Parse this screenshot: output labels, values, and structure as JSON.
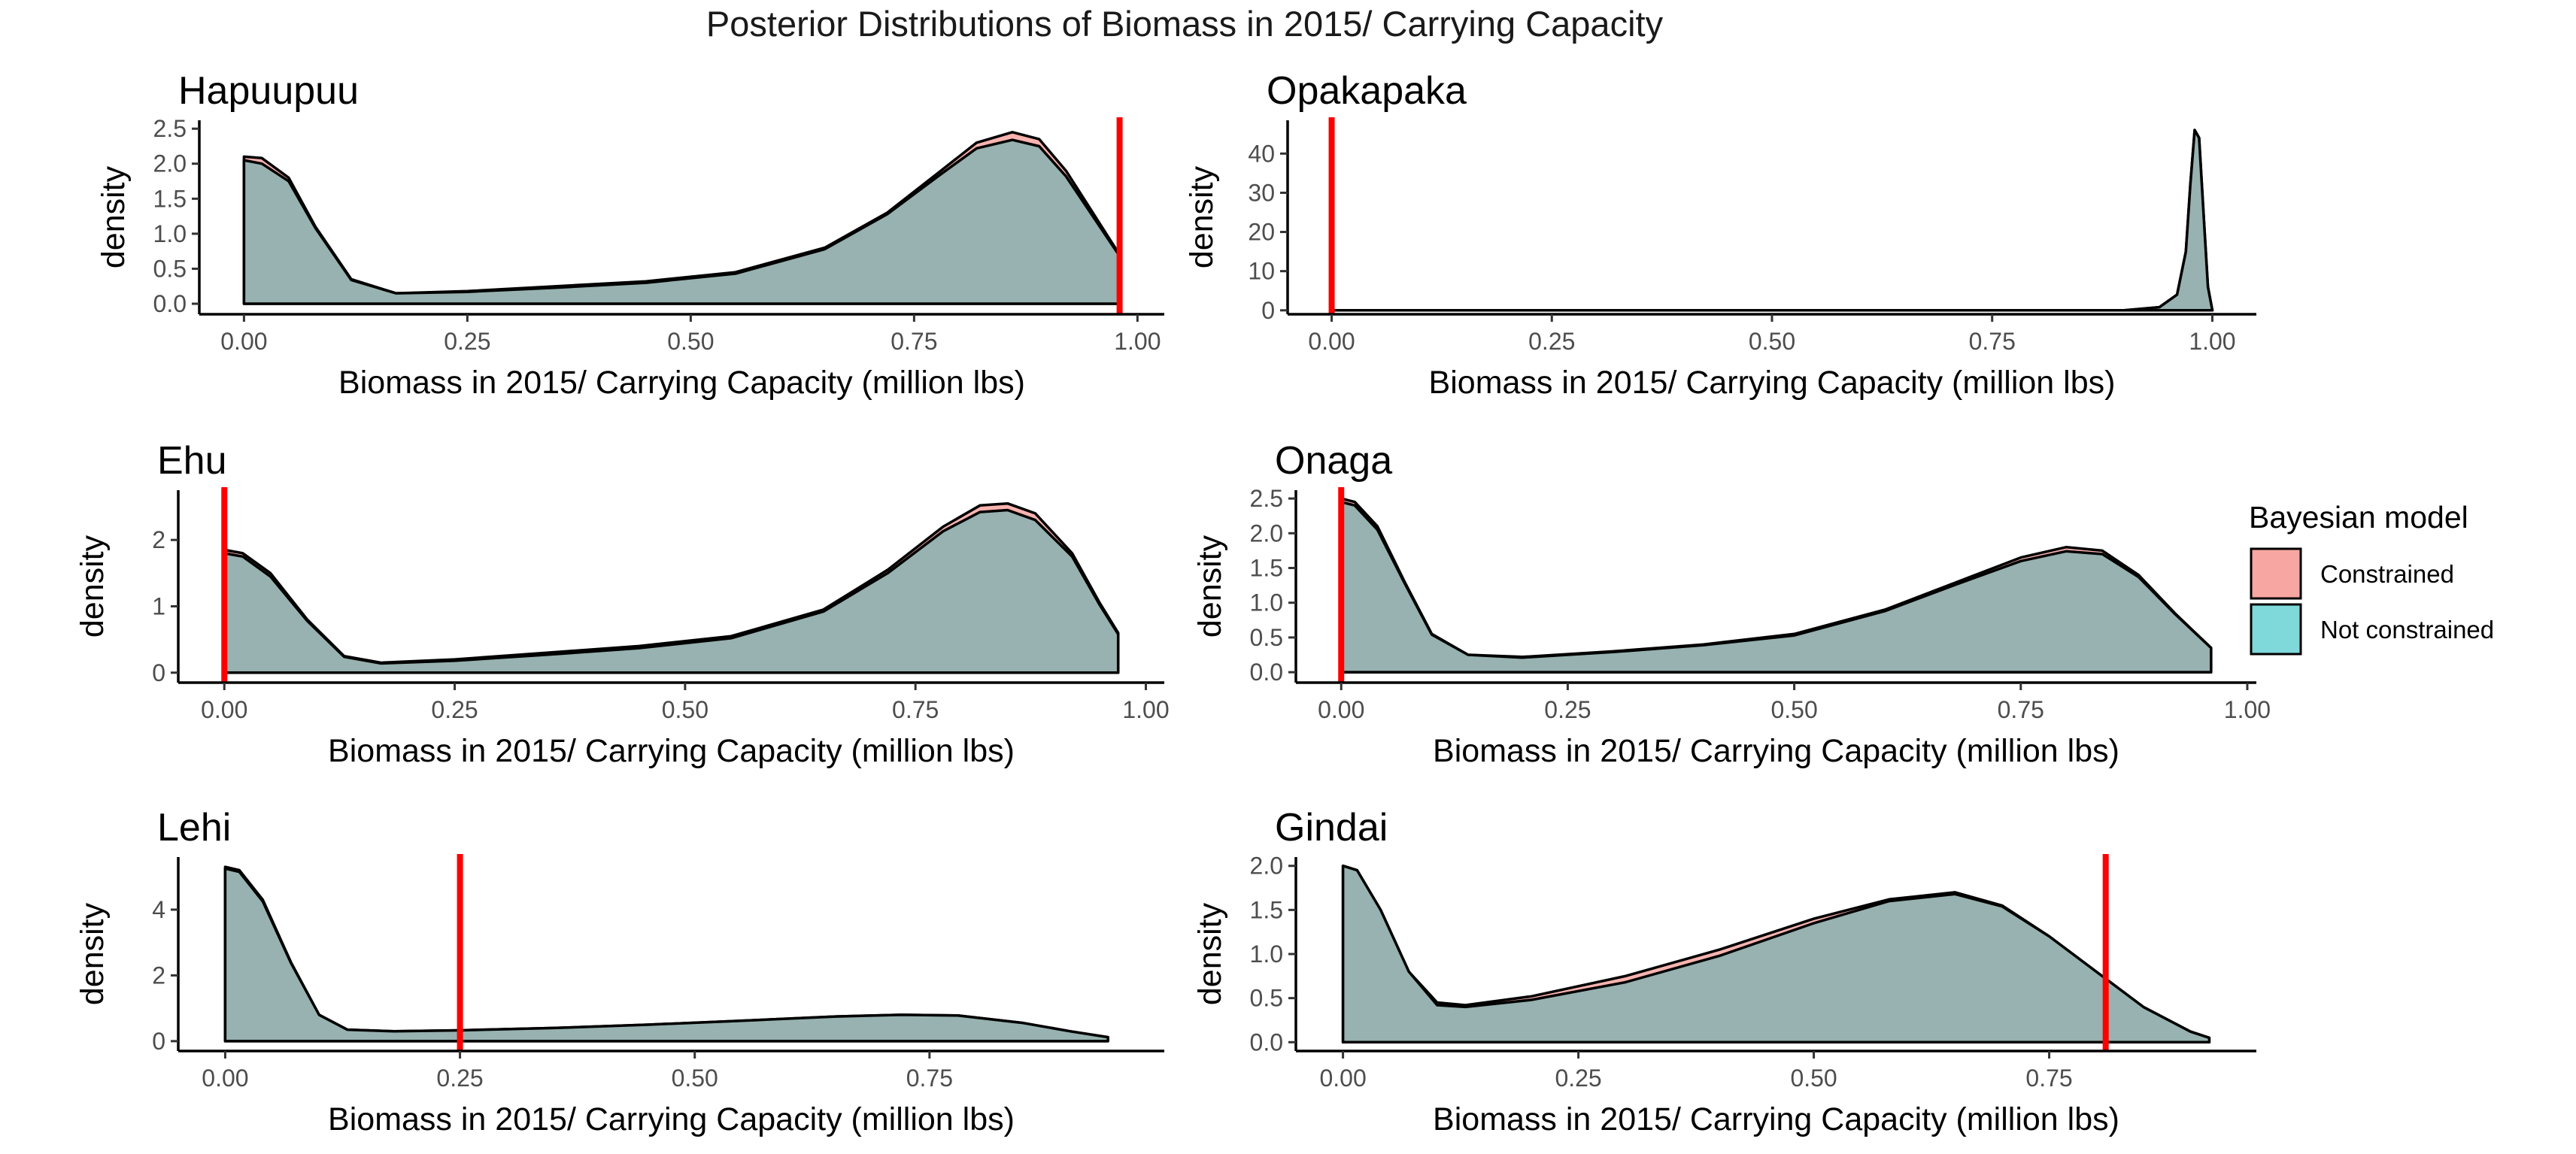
{
  "title": "Posterior Distributions of Biomass in 2015/ Carrying Capacity",
  "legend": {
    "title": "Bayesian model",
    "items": [
      {
        "label": "Constrained",
        "color": "#F8A6A1"
      },
      {
        "label": "Not constrained",
        "color": "#7FD8DA"
      }
    ]
  },
  "colors": {
    "overlap_fill": "#89B2B1",
    "reference_line": "#FF0000",
    "outline": "#000000"
  },
  "chart_data": [
    {
      "type": "area",
      "panel": "Hapuupuu",
      "xlabel": "Biomass in 2015/ Carrying Capacity (million lbs)",
      "ylabel": "density",
      "xlim": [
        -0.05,
        1.03
      ],
      "ylim": [
        -0.15,
        2.62
      ],
      "xticks": [
        {
          "v": 0,
          "label": "0.00"
        },
        {
          "v": 0.25,
          "label": "0.25"
        },
        {
          "v": 0.5,
          "label": "0.50"
        },
        {
          "v": 0.75,
          "label": "0.75"
        },
        {
          "v": 1.0,
          "label": "1.00"
        }
      ],
      "yticks": [
        {
          "v": 0,
          "label": "0.0"
        },
        {
          "v": 0.5,
          "label": "0.5"
        },
        {
          "v": 1.0,
          "label": "1.0"
        },
        {
          "v": 1.5,
          "label": "1.5"
        },
        {
          "v": 2.0,
          "label": "2.0"
        },
        {
          "v": 2.5,
          "label": "2.5"
        }
      ],
      "reference_x": 0.98,
      "series": [
        {
          "name": "Constrained",
          "x": [
            0,
            0.02,
            0.05,
            0.08,
            0.12,
            0.17,
            0.25,
            0.35,
            0.45,
            0.55,
            0.65,
            0.72,
            0.78,
            0.82,
            0.86,
            0.89,
            0.92,
            0.95,
            0.98
          ],
          "y": [
            2.1,
            2.08,
            1.8,
            1.1,
            0.35,
            0.15,
            0.18,
            0.25,
            0.32,
            0.45,
            0.8,
            1.3,
            1.9,
            2.3,
            2.45,
            2.35,
            1.9,
            1.3,
            0.7
          ]
        },
        {
          "name": "Not constrained",
          "x": [
            0,
            0.02,
            0.05,
            0.08,
            0.12,
            0.17,
            0.25,
            0.35,
            0.45,
            0.55,
            0.65,
            0.72,
            0.78,
            0.82,
            0.86,
            0.89,
            0.92,
            0.95,
            0.98
          ],
          "y": [
            2.05,
            2.0,
            1.75,
            1.08,
            0.34,
            0.15,
            0.17,
            0.23,
            0.3,
            0.43,
            0.78,
            1.28,
            1.85,
            2.22,
            2.34,
            2.25,
            1.82,
            1.25,
            0.68
          ]
        }
      ]
    },
    {
      "type": "area",
      "panel": "Opakapaka",
      "xlabel": "Biomass in 2015/ Carrying Capacity (million lbs)",
      "ylabel": "density",
      "xlim": [
        -0.05,
        1.05
      ],
      "ylim": [
        -1,
        48.5
      ],
      "xticks": [
        {
          "v": 0,
          "label": "0.00"
        },
        {
          "v": 0.25,
          "label": "0.25"
        },
        {
          "v": 0.5,
          "label": "0.50"
        },
        {
          "v": 0.75,
          "label": "0.75"
        },
        {
          "v": 1.0,
          "label": "1.00"
        }
      ],
      "yticks": [
        {
          "v": 0,
          "label": "0"
        },
        {
          "v": 10,
          "label": "10"
        },
        {
          "v": 20,
          "label": "20"
        },
        {
          "v": 30,
          "label": "30"
        },
        {
          "v": 40,
          "label": "40"
        }
      ],
      "reference_x": 0.0,
      "series": [
        {
          "name": "Constrained",
          "x": [
            0,
            0.5,
            0.9,
            0.94,
            0.96,
            0.97,
            0.975,
            0.98,
            0.985,
            0.99,
            0.995,
            1.0
          ],
          "y": [
            0,
            0,
            0.02,
            0.8,
            4,
            15,
            32,
            46,
            44,
            25,
            6,
            0
          ]
        },
        {
          "name": "Not constrained",
          "x": [
            0,
            0.5,
            0.9,
            0.94,
            0.96,
            0.97,
            0.975,
            0.98,
            0.985,
            0.99,
            0.995,
            1.0
          ],
          "y": [
            0,
            0,
            0.02,
            0.8,
            4,
            15,
            32,
            46,
            44,
            25,
            6,
            0
          ]
        }
      ]
    },
    {
      "type": "area",
      "panel": "Ehu",
      "xlabel": "Biomass in 2015/ Carrying Capacity (million lbs)",
      "ylabel": "density",
      "xlim": [
        -0.05,
        1.02
      ],
      "ylim": [
        -0.15,
        2.75
      ],
      "xticks": [
        {
          "v": 0,
          "label": "0.00"
        },
        {
          "v": 0.25,
          "label": "0.25"
        },
        {
          "v": 0.5,
          "label": "0.50"
        },
        {
          "v": 0.75,
          "label": "0.75"
        },
        {
          "v": 1.0,
          "label": "1.00"
        }
      ],
      "yticks": [
        {
          "v": 0,
          "label": "0"
        },
        {
          "v": 1,
          "label": "1"
        },
        {
          "v": 2,
          "label": "2"
        }
      ],
      "reference_x": 0.0,
      "series": [
        {
          "name": "Constrained",
          "x": [
            0,
            0.02,
            0.05,
            0.09,
            0.13,
            0.17,
            0.25,
            0.35,
            0.45,
            0.55,
            0.65,
            0.72,
            0.78,
            0.82,
            0.85,
            0.88,
            0.92,
            0.95,
            0.97
          ],
          "y": [
            1.85,
            1.8,
            1.5,
            0.8,
            0.25,
            0.15,
            0.2,
            0.3,
            0.4,
            0.55,
            0.95,
            1.55,
            2.2,
            2.52,
            2.55,
            2.4,
            1.8,
            1.05,
            0.6
          ]
        },
        {
          "name": "Not constrained",
          "x": [
            0,
            0.02,
            0.05,
            0.09,
            0.13,
            0.17,
            0.25,
            0.35,
            0.45,
            0.55,
            0.65,
            0.72,
            0.78,
            0.82,
            0.85,
            0.88,
            0.92,
            0.95,
            0.97
          ],
          "y": [
            1.8,
            1.75,
            1.45,
            0.78,
            0.24,
            0.14,
            0.18,
            0.27,
            0.37,
            0.52,
            0.92,
            1.5,
            2.13,
            2.42,
            2.45,
            2.3,
            1.75,
            1.02,
            0.58
          ]
        }
      ]
    },
    {
      "type": "area",
      "panel": "Onaga",
      "xlabel": "Biomass in 2015/ Carrying Capacity (million lbs)",
      "ylabel": "density",
      "xlim": [
        -0.05,
        1.01
      ],
      "ylim": [
        -0.15,
        2.62
      ],
      "xticks": [
        {
          "v": 0,
          "label": "0.00"
        },
        {
          "v": 0.25,
          "label": "0.25"
        },
        {
          "v": 0.5,
          "label": "0.50"
        },
        {
          "v": 0.75,
          "label": "0.75"
        },
        {
          "v": 1.0,
          "label": "1.00"
        }
      ],
      "yticks": [
        {
          "v": 0,
          "label": "0.0"
        },
        {
          "v": 0.5,
          "label": "0.5"
        },
        {
          "v": 1.0,
          "label": "1.0"
        },
        {
          "v": 1.5,
          "label": "1.5"
        },
        {
          "v": 2.0,
          "label": "2.0"
        },
        {
          "v": 2.5,
          "label": "2.5"
        }
      ],
      "reference_x": 0.0,
      "series": [
        {
          "name": "Constrained",
          "x": [
            0,
            0.015,
            0.04,
            0.07,
            0.1,
            0.14,
            0.2,
            0.3,
            0.4,
            0.5,
            0.6,
            0.68,
            0.75,
            0.8,
            0.84,
            0.88,
            0.92,
            0.96
          ],
          "y": [
            2.5,
            2.45,
            2.1,
            1.3,
            0.55,
            0.25,
            0.22,
            0.3,
            0.4,
            0.55,
            0.9,
            1.3,
            1.65,
            1.8,
            1.75,
            1.4,
            0.85,
            0.35
          ]
        },
        {
          "name": "Not constrained",
          "x": [
            0,
            0.015,
            0.04,
            0.07,
            0.1,
            0.14,
            0.2,
            0.3,
            0.4,
            0.5,
            0.6,
            0.68,
            0.75,
            0.8,
            0.84,
            0.88,
            0.92,
            0.96
          ],
          "y": [
            2.45,
            2.4,
            2.05,
            1.28,
            0.54,
            0.25,
            0.21,
            0.29,
            0.39,
            0.53,
            0.88,
            1.27,
            1.6,
            1.74,
            1.7,
            1.37,
            0.84,
            0.35
          ]
        }
      ]
    },
    {
      "type": "area",
      "panel": "Lehi",
      "xlabel": "Biomass in 2015/ Carrying Capacity (million lbs)",
      "ylabel": "density",
      "xlim": [
        -0.05,
        1.0
      ],
      "ylim": [
        -0.3,
        5.6
      ],
      "xticks": [
        {
          "v": 0,
          "label": "0.00"
        },
        {
          "v": 0.25,
          "label": "0.25"
        },
        {
          "v": 0.5,
          "label": "0.50"
        },
        {
          "v": 0.75,
          "label": "0.75"
        }
      ],
      "yticks": [
        {
          "v": 0,
          "label": "0"
        },
        {
          "v": 2,
          "label": "2"
        },
        {
          "v": 4,
          "label": "4"
        }
      ],
      "reference_x": 0.25,
      "series": [
        {
          "name": "Constrained",
          "x": [
            0,
            0.015,
            0.04,
            0.07,
            0.1,
            0.13,
            0.18,
            0.25,
            0.35,
            0.45,
            0.55,
            0.65,
            0.72,
            0.78,
            0.85,
            0.9,
            0.94
          ],
          "y": [
            5.3,
            5.2,
            4.3,
            2.4,
            0.8,
            0.35,
            0.3,
            0.33,
            0.4,
            0.5,
            0.62,
            0.75,
            0.8,
            0.78,
            0.55,
            0.3,
            0.12
          ]
        },
        {
          "name": "Not constrained",
          "x": [
            0,
            0.015,
            0.04,
            0.07,
            0.1,
            0.13,
            0.18,
            0.25,
            0.35,
            0.45,
            0.55,
            0.65,
            0.72,
            0.78,
            0.85,
            0.9,
            0.94
          ],
          "y": [
            5.25,
            5.15,
            4.25,
            2.38,
            0.8,
            0.35,
            0.3,
            0.33,
            0.4,
            0.5,
            0.62,
            0.75,
            0.8,
            0.78,
            0.55,
            0.3,
            0.12
          ]
        }
      ]
    },
    {
      "type": "area",
      "panel": "Gindai",
      "xlabel": "Biomass in 2015/ Carrying Capacity (million lbs)",
      "ylabel": "density",
      "xlim": [
        -0.05,
        0.97
      ],
      "ylim": [
        -0.1,
        2.1
      ],
      "xticks": [
        {
          "v": 0,
          "label": "0.00"
        },
        {
          "v": 0.25,
          "label": "0.25"
        },
        {
          "v": 0.5,
          "label": "0.50"
        },
        {
          "v": 0.75,
          "label": "0.75"
        }
      ],
      "yticks": [
        {
          "v": 0,
          "label": "0.0"
        },
        {
          "v": 0.5,
          "label": "0.5"
        },
        {
          "v": 1.0,
          "label": "1.0"
        },
        {
          "v": 1.5,
          "label": "1.5"
        },
        {
          "v": 2.0,
          "label": "2.0"
        }
      ],
      "reference_x": 0.81,
      "series": [
        {
          "name": "Constrained",
          "x": [
            0,
            0.015,
            0.04,
            0.07,
            0.1,
            0.13,
            0.2,
            0.3,
            0.4,
            0.5,
            0.58,
            0.65,
            0.7,
            0.75,
            0.8,
            0.85,
            0.9,
            0.92
          ],
          "y": [
            2.0,
            1.95,
            1.5,
            0.8,
            0.45,
            0.42,
            0.52,
            0.75,
            1.05,
            1.4,
            1.62,
            1.7,
            1.55,
            1.2,
            0.8,
            0.4,
            0.12,
            0.05
          ]
        },
        {
          "name": "Not constrained",
          "x": [
            0,
            0.015,
            0.04,
            0.07,
            0.1,
            0.13,
            0.2,
            0.3,
            0.4,
            0.5,
            0.58,
            0.65,
            0.7,
            0.75,
            0.8,
            0.85,
            0.9,
            0.92
          ],
          "y": [
            2.0,
            1.95,
            1.5,
            0.8,
            0.42,
            0.4,
            0.48,
            0.68,
            0.98,
            1.35,
            1.6,
            1.68,
            1.54,
            1.2,
            0.8,
            0.4,
            0.12,
            0.05
          ]
        }
      ]
    }
  ]
}
